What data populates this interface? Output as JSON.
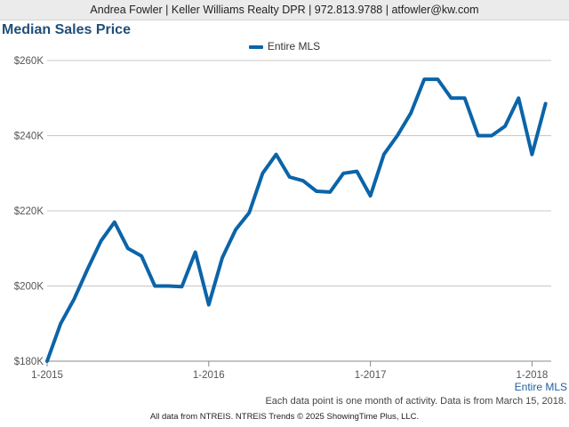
{
  "header": {
    "agent_info": "Andrea Fowler | Keller Williams Realty DPR | 972.813.9788 | atfowler@kw.com"
  },
  "chart_data": {
    "type": "line",
    "title": "Median Sales Price",
    "ylim": [
      180000,
      260000
    ],
    "y_ticks": [
      180000,
      200000,
      220000,
      240000,
      260000
    ],
    "y_tick_labels": [
      "$180K",
      "$200K",
      "$220K",
      "$240K",
      "$260K"
    ],
    "x_tick_labels": [
      "1-2015",
      "1-2016",
      "1-2017",
      "1-2018"
    ],
    "x_ticks": [
      "2015-01",
      "2016-01",
      "2017-01",
      "2018-01"
    ],
    "grid": true,
    "legend": {
      "position": "top-center",
      "entries": [
        "Entire MLS"
      ]
    },
    "series": [
      {
        "name": "Entire MLS",
        "color": "#0b64a8",
        "x": [
          "2015-01",
          "2015-02",
          "2015-03",
          "2015-04",
          "2015-05",
          "2015-06",
          "2015-07",
          "2015-08",
          "2015-09",
          "2015-10",
          "2015-11",
          "2015-12",
          "2016-01",
          "2016-02",
          "2016-03",
          "2016-04",
          "2016-05",
          "2016-06",
          "2016-07",
          "2016-08",
          "2016-09",
          "2016-10",
          "2016-11",
          "2016-12",
          "2017-01",
          "2017-02",
          "2017-03",
          "2017-04",
          "2017-05",
          "2017-06",
          "2017-07",
          "2017-08",
          "2017-09",
          "2017-10",
          "2017-11",
          "2017-12",
          "2018-01",
          "2018-02"
        ],
        "values": [
          180000,
          190000,
          196500,
          204500,
          212000,
          217000,
          210000,
          208000,
          200000,
          200000,
          199800,
          209000,
          195000,
          207500,
          215000,
          219500,
          230000,
          235000,
          229000,
          228000,
          225200,
          225000,
          230000,
          230500,
          224000,
          235000,
          240000,
          246000,
          255000,
          255000,
          250000,
          250000,
          240000,
          240000,
          242500,
          250000,
          235000,
          248500
        ]
      }
    ],
    "series_end_label": "Entire MLS"
  },
  "footnote": "Each data point is one month of activity. Data is from March 15, 2018.",
  "source": "All data from NTREIS. NTREIS Trends © 2025 ShowingTime Plus, LLC."
}
